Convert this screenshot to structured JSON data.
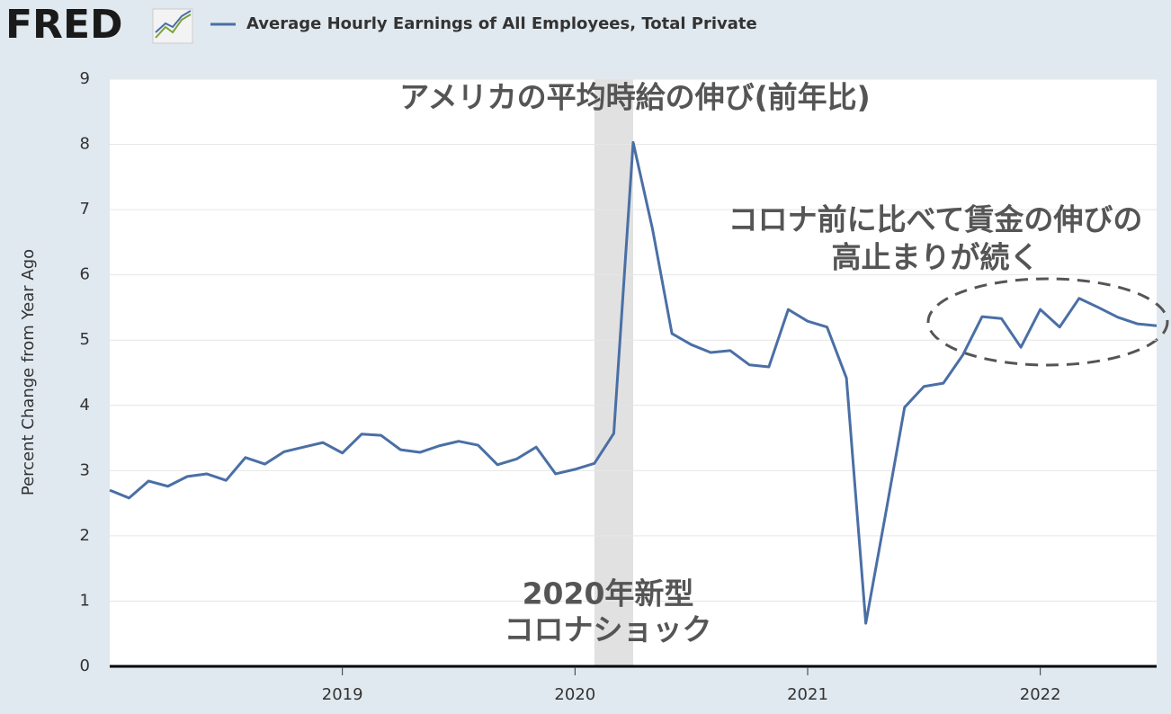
{
  "logo": "FRED",
  "chart_data": {
    "type": "line",
    "title": "アメリカの平均時給の伸び(前年比)",
    "y_label": "Percent Change from Year Ago",
    "annotations": [
      "コロナ前に比べて賃金の伸びの",
      "高止まりが続く",
      "2020年新型",
      "コロナショック"
    ],
    "shaded_region": [
      2020.0833,
      2020.25
    ],
    "xlim": [
      2018,
      2022.5
    ],
    "xticks": [
      2019,
      2020,
      2021,
      2022
    ],
    "ylim": [
      0,
      9
    ],
    "yticks": [
      0,
      1,
      2,
      3,
      4,
      5,
      6,
      7,
      8,
      9
    ],
    "grid": true,
    "x": [
      2018,
      2018.0833,
      2018.1667,
      2018.25,
      2018.3333,
      2018.4167,
      2018.5,
      2018.5833,
      2018.6667,
      2018.75,
      2018.8333,
      2018.9167,
      2019,
      2019.0833,
      2019.1667,
      2019.25,
      2019.3333,
      2019.4167,
      2019.5,
      2019.5833,
      2019.6667,
      2019.75,
      2019.8333,
      2019.9167,
      2020,
      2020.0833,
      2020.1667,
      2020.25,
      2020.3333,
      2020.4167,
      2020.5,
      2020.5833,
      2020.6667,
      2020.75,
      2020.8333,
      2020.9167,
      2021,
      2021.0833,
      2021.1667,
      2021.25,
      2021.3333,
      2021.4167,
      2021.5,
      2021.5833,
      2021.6667,
      2021.75,
      2021.8333,
      2021.9167,
      2022,
      2022.0833,
      2022.1667,
      2022.25,
      2022.3333,
      2022.4167,
      2022.5
    ],
    "series": [
      {
        "name": "Average Hourly Earnings of All Employees, Total Private",
        "color": "#4a6fa5",
        "values": [
          2.7,
          2.58,
          2.84,
          2.76,
          2.91,
          2.95,
          2.85,
          3.2,
          3.1,
          3.29,
          3.36,
          3.43,
          3.27,
          3.56,
          3.54,
          3.32,
          3.28,
          3.38,
          3.45,
          3.39,
          3.09,
          3.18,
          3.36,
          2.95,
          3.02,
          3.11,
          3.57,
          8.03,
          6.7,
          5.1,
          4.93,
          4.81,
          4.84,
          4.62,
          4.59,
          5.47,
          5.29,
          5.2,
          4.42,
          0.66,
          2.3,
          3.97,
          4.29,
          4.34,
          4.77,
          5.36,
          5.33,
          4.89,
          5.47,
          5.2,
          5.64,
          5.5,
          5.35,
          5.25,
          5.22
        ]
      }
    ]
  }
}
